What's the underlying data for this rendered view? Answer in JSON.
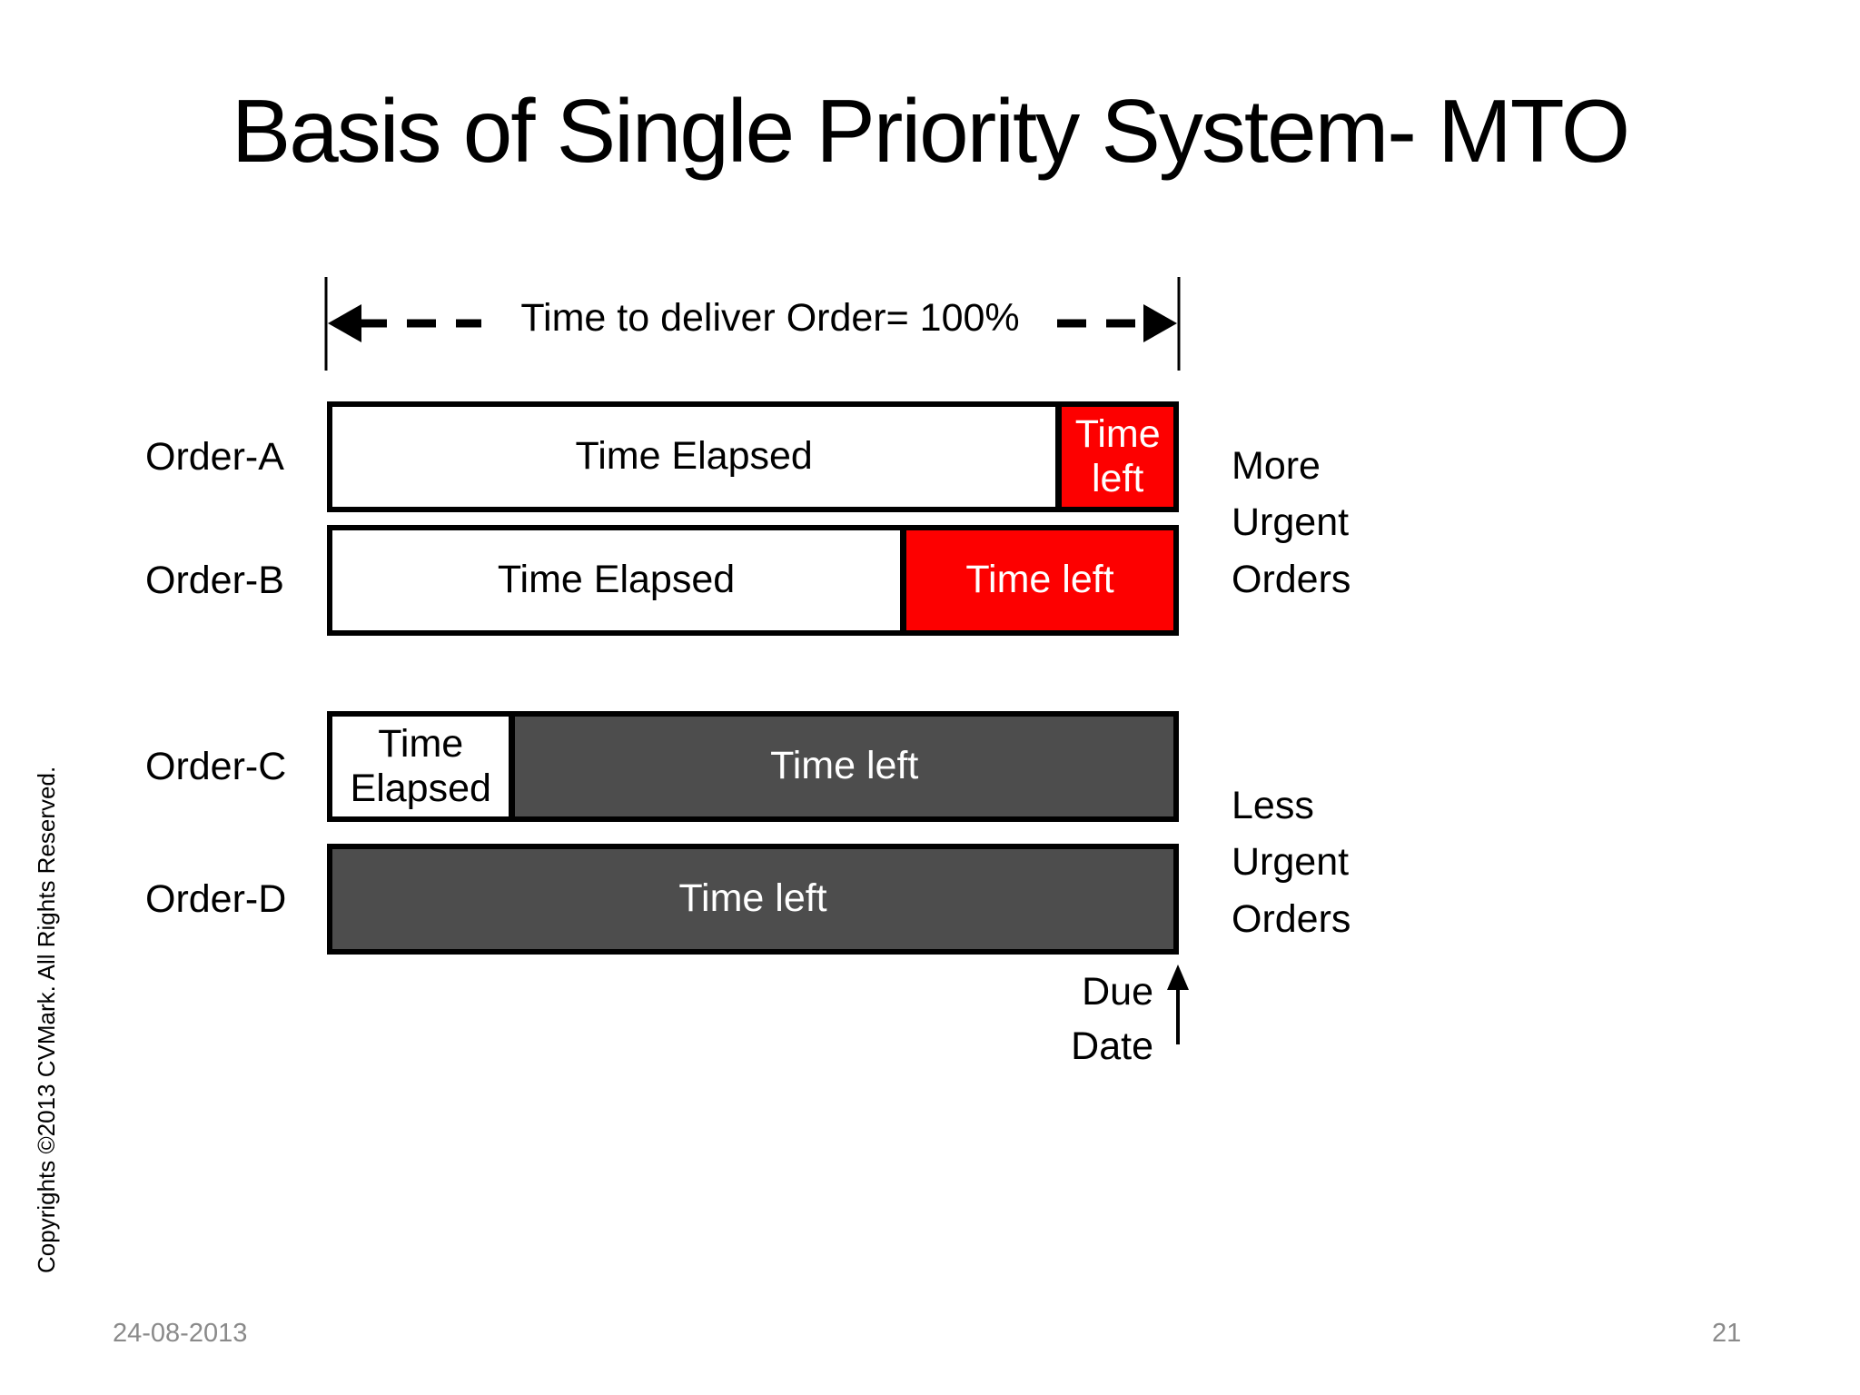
{
  "slide": {
    "title": "Basis of Single Priority System- MTO",
    "copyright_vertical": "Copyrights ©2013 CVMark. All Rights Reserved.",
    "footer": {
      "date": "24-08-2013",
      "page_number": "21"
    }
  },
  "diagram": {
    "timeline_annotation": "Time to deliver Order= 100%",
    "orders": [
      {
        "label": "Order-A",
        "elapsed_label": "Time Elapsed",
        "elapsed_pct": 86,
        "left_label": "Time left",
        "left_pct": 14,
        "urgency": "more"
      },
      {
        "label": "Order-B",
        "elapsed_label": "Time Elapsed",
        "elapsed_pct": 67.5,
        "left_label": "Time left",
        "left_pct": 32.5,
        "urgency": "more"
      },
      {
        "label": "Order-C",
        "elapsed_label": "Time Elapsed",
        "elapsed_pct": 21,
        "left_label": "Time left",
        "left_pct": 79,
        "urgency": "less"
      },
      {
        "label": "Order-D",
        "left_label": "Time left",
        "left_pct": 100,
        "urgency": "less"
      }
    ],
    "group_labels": {
      "more": "More Urgent Orders",
      "less": "Less Urgent Orders"
    },
    "due_date_label": "Due Date"
  },
  "colors": {
    "urgent_red": "#fd0000",
    "time_left_gray": "#4d4d4d",
    "footer_text": "#8a8a8a"
  }
}
